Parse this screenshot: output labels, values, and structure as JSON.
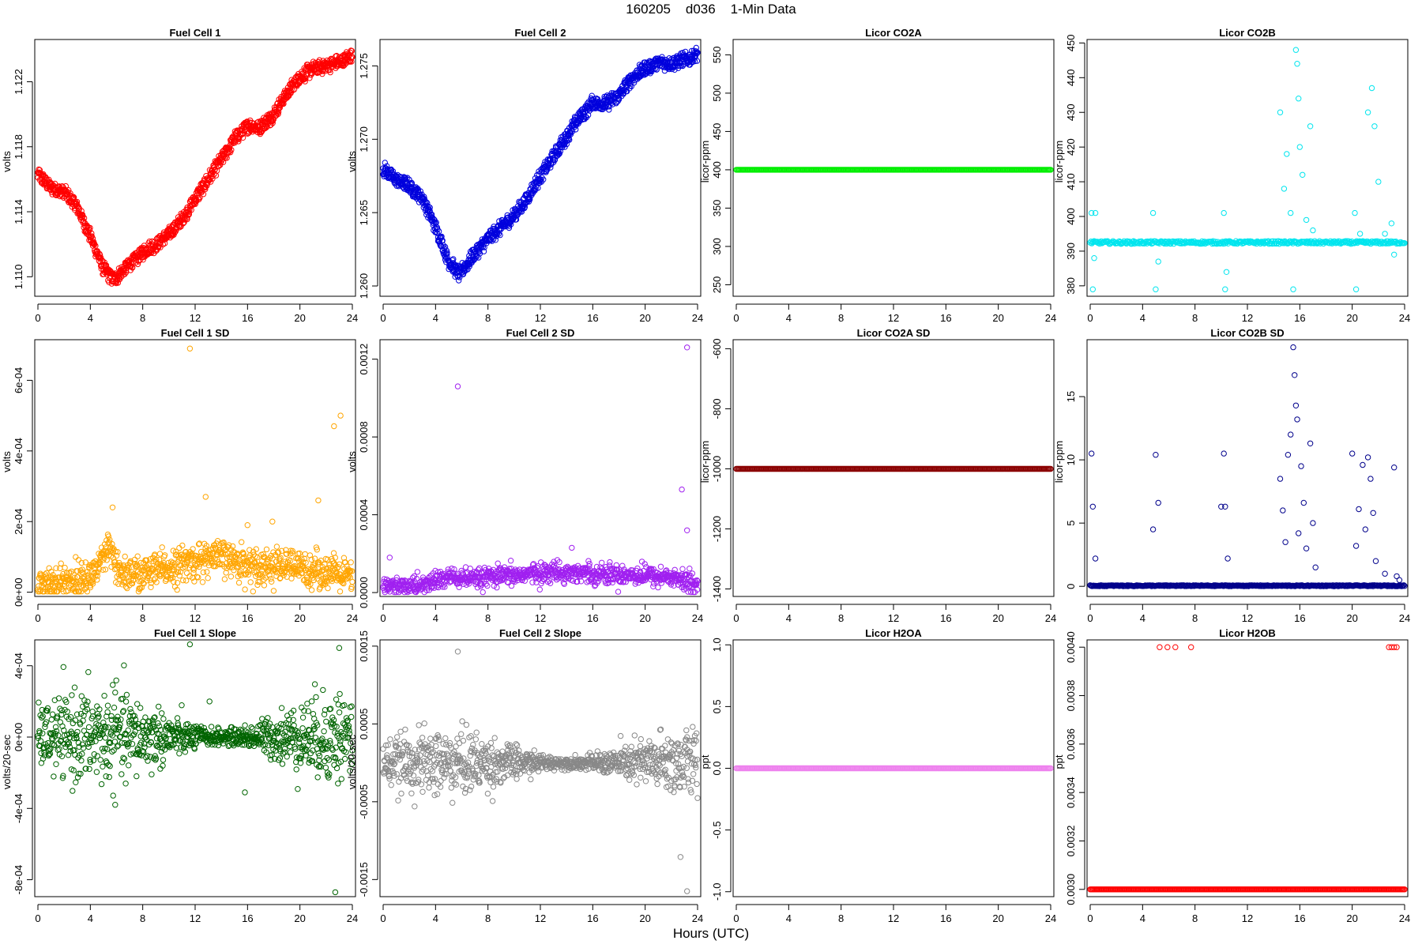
{
  "title": "160205    d036    1-Min Data",
  "xlabel": "Hours (UTC)",
  "chart_data": [
    {
      "type": "scatter",
      "title": "Fuel Cell 1",
      "ylabel": "volts",
      "color": "#ff0000",
      "xlim": [
        0,
        24
      ],
      "xticks": [
        0,
        4,
        8,
        12,
        16,
        20,
        24
      ],
      "ylim": [
        1.1088,
        1.1246
      ],
      "yticks": [
        1.11,
        1.114,
        1.118,
        1.122
      ],
      "ytick_labels": [
        "1.110",
        "1.114",
        "1.118",
        "1.122"
      ],
      "mode": "trend",
      "knots": [
        [
          0,
          1.1163
        ],
        [
          1,
          1.1155
        ],
        [
          2,
          1.1152
        ],
        [
          3,
          1.1143
        ],
        [
          4,
          1.1125
        ],
        [
          5,
          1.1105
        ],
        [
          5.8,
          1.1098
        ],
        [
          7,
          1.1108
        ],
        [
          8,
          1.1115
        ],
        [
          9,
          1.112
        ],
        [
          10,
          1.1126
        ],
        [
          11,
          1.1135
        ],
        [
          12,
          1.1148
        ],
        [
          13,
          1.116
        ],
        [
          14,
          1.1172
        ],
        [
          15,
          1.1185
        ],
        [
          16,
          1.1193
        ],
        [
          17,
          1.1192
        ],
        [
          18,
          1.12
        ],
        [
          19,
          1.1213
        ],
        [
          20,
          1.1223
        ],
        [
          21,
          1.1228
        ],
        [
          22,
          1.123
        ],
        [
          23,
          1.1232
        ],
        [
          24,
          1.1236
        ]
      ],
      "band": 0.00045
    },
    {
      "type": "scatter",
      "title": "Fuel Cell 2",
      "ylabel": "volts",
      "color": "#0000dd",
      "xlim": [
        0,
        24
      ],
      "xticks": [
        0,
        4,
        8,
        12,
        16,
        20,
        24
      ],
      "ylim": [
        1.2593,
        1.2768
      ],
      "yticks": [
        1.26,
        1.265,
        1.27,
        1.275
      ],
      "ytick_labels": [
        "1.260",
        "1.265",
        "1.270",
        "1.275"
      ],
      "mode": "trend",
      "knots": [
        [
          0,
          1.268
        ],
        [
          1,
          1.2672
        ],
        [
          2,
          1.2668
        ],
        [
          3,
          1.266
        ],
        [
          4,
          1.264
        ],
        [
          5,
          1.2617
        ],
        [
          5.8,
          1.2608
        ],
        [
          7,
          1.2622
        ],
        [
          8,
          1.2632
        ],
        [
          9,
          1.264
        ],
        [
          10,
          1.2648
        ],
        [
          11,
          1.266
        ],
        [
          12,
          1.2675
        ],
        [
          13,
          1.2688
        ],
        [
          14,
          1.2702
        ],
        [
          15,
          1.2715
        ],
        [
          16,
          1.2725
        ],
        [
          17,
          1.2724
        ],
        [
          18,
          1.273
        ],
        [
          19,
          1.2742
        ],
        [
          20,
          1.2748
        ],
        [
          21,
          1.2752
        ],
        [
          22,
          1.2752
        ],
        [
          23,
          1.2754
        ],
        [
          24,
          1.2758
        ]
      ],
      "band": 0.0005
    },
    {
      "type": "scatter",
      "title": "Licor CO2A",
      "ylabel": "licor-ppm",
      "color": "#00ee00",
      "xlim": [
        0,
        24
      ],
      "xticks": [
        0,
        4,
        8,
        12,
        16,
        20,
        24
      ],
      "ylim": [
        235,
        570
      ],
      "yticks": [
        250,
        300,
        350,
        400,
        450,
        500,
        550
      ],
      "ytick_labels": [
        "250",
        "300",
        "350",
        "400",
        "450",
        "500",
        "550"
      ],
      "mode": "flat",
      "value": 400
    },
    {
      "type": "scatter",
      "title": "Licor CO2B",
      "ylabel": "licor-ppm",
      "color": "#00e5ee",
      "xlim": [
        0,
        24
      ],
      "xticks": [
        0,
        4,
        8,
        12,
        16,
        20,
        24
      ],
      "ylim": [
        377,
        451
      ],
      "yticks": [
        380,
        390,
        400,
        410,
        420,
        430,
        440,
        450
      ],
      "ytick_labels": [
        "380",
        "390",
        "400",
        "410",
        "420",
        "430",
        "440",
        "450"
      ],
      "mode": "baseline",
      "base": 392.5,
      "noise": 0.4,
      "spikes": [
        [
          0.1,
          401
        ],
        [
          0.2,
          379
        ],
        [
          0.3,
          388
        ],
        [
          0.4,
          401
        ],
        [
          4.8,
          401
        ],
        [
          5.0,
          379
        ],
        [
          5.2,
          387
        ],
        [
          10.2,
          401
        ],
        [
          10.3,
          379
        ],
        [
          10.4,
          384
        ],
        [
          14.5,
          430
        ],
        [
          14.8,
          408
        ],
        [
          15.0,
          418
        ],
        [
          15.3,
          401
        ],
        [
          15.5,
          379
        ],
        [
          15.7,
          448
        ],
        [
          15.8,
          444
        ],
        [
          15.9,
          434
        ],
        [
          16.0,
          420
        ],
        [
          16.2,
          412
        ],
        [
          16.5,
          399
        ],
        [
          16.8,
          426
        ],
        [
          17.0,
          396
        ],
        [
          20.2,
          401
        ],
        [
          20.3,
          379
        ],
        [
          20.6,
          395
        ],
        [
          21.2,
          430
        ],
        [
          21.5,
          437
        ],
        [
          21.7,
          426
        ],
        [
          22.0,
          410
        ],
        [
          22.5,
          395
        ],
        [
          23.0,
          398
        ],
        [
          23.2,
          389
        ]
      ]
    },
    {
      "type": "scatter",
      "title": "Fuel Cell 1 SD",
      "ylabel": "volts",
      "color": "#ffa500",
      "xlim": [
        0,
        24
      ],
      "xticks": [
        0,
        4,
        8,
        12,
        16,
        20,
        24
      ],
      "ylim": [
        -1.2e-05,
        0.000715
      ],
      "yticks": [
        0,
        0.0002,
        0.0004,
        0.0006
      ],
      "ytick_labels": [
        "0e+00",
        "2e-04",
        "4e-04",
        "6e-04"
      ],
      "mode": "noise",
      "knots": [
        [
          0,
          1.5e-05
        ],
        [
          3,
          2.5e-05
        ],
        [
          4,
          3.5e-05
        ],
        [
          5,
          8e-05
        ],
        [
          5.5,
          0.00012
        ],
        [
          6,
          5e-05
        ],
        [
          8,
          4e-05
        ],
        [
          10,
          6e-05
        ],
        [
          12,
          8e-05
        ],
        [
          14,
          9e-05
        ],
        [
          16,
          7e-05
        ],
        [
          20,
          6e-05
        ],
        [
          22,
          5e-05
        ],
        [
          24,
          3e-05
        ]
      ],
      "spread": 3e-05,
      "spikes": [
        [
          11.6,
          0.00069
        ],
        [
          12.8,
          0.00027
        ],
        [
          5.7,
          0.00024
        ],
        [
          21.4,
          0.00026
        ],
        [
          22.6,
          0.00047
        ],
        [
          23.1,
          0.0005
        ],
        [
          17.9,
          0.0002
        ],
        [
          16.0,
          0.00019
        ]
      ]
    },
    {
      "type": "scatter",
      "title": "Fuel Cell 2 SD",
      "ylabel": "volts",
      "color": "#a020f0",
      "xlim": [
        0,
        24
      ],
      "xticks": [
        0,
        4,
        8,
        12,
        16,
        20,
        24
      ],
      "ylim": [
        -2e-05,
        0.0013
      ],
      "yticks": [
        0,
        0.0004,
        0.0008,
        0.0012
      ],
      "ytick_labels": [
        "0.0000",
        "0.0004",
        "0.0008",
        "0.0012"
      ],
      "mode": "noise",
      "knots": [
        [
          0,
          2e-05
        ],
        [
          3,
          3e-05
        ],
        [
          5,
          7e-05
        ],
        [
          7,
          6e-05
        ],
        [
          10,
          8e-05
        ],
        [
          13,
          0.0001
        ],
        [
          16,
          9e-05
        ],
        [
          20,
          8e-05
        ],
        [
          22,
          7e-05
        ],
        [
          24,
          3e-05
        ]
      ],
      "spread": 3e-05,
      "spikes": [
        [
          0.5,
          0.00018
        ],
        [
          5.7,
          0.00106
        ],
        [
          22.8,
          0.00053
        ],
        [
          23.2,
          0.00032
        ],
        [
          23.2,
          0.00126
        ],
        [
          14.4,
          0.00023
        ]
      ]
    },
    {
      "type": "scatter",
      "title": "Licor CO2A SD",
      "ylabel": "licor-ppm",
      "color": "#8b0000",
      "xlim": [
        0,
        24
      ],
      "xticks": [
        0,
        4,
        8,
        12,
        16,
        20,
        24
      ],
      "ylim": [
        -1425,
        -570
      ],
      "yticks": [
        -1400,
        -1200,
        -1000,
        -800,
        -600
      ],
      "ytick_labels": [
        "-1400",
        "-1200",
        "-1000",
        "-800",
        "-600"
      ],
      "mode": "flat",
      "value": -1000
    },
    {
      "type": "scatter",
      "title": "Licor CO2B SD",
      "ylabel": "licor-ppm",
      "color": "#00008b",
      "xlim": [
        0,
        24
      ],
      "xticks": [
        0,
        4,
        8,
        12,
        16,
        20,
        24
      ],
      "ylim": [
        -0.8,
        19.5
      ],
      "yticks": [
        0,
        5,
        10,
        15
      ],
      "ytick_labels": [
        "0",
        "5",
        "10",
        "15"
      ],
      "mode": "baseline",
      "base": 0.05,
      "noise": 0.04,
      "spikes": [
        [
          0.1,
          10.5
        ],
        [
          0.2,
          6.3
        ],
        [
          0.4,
          2.2
        ],
        [
          4.8,
          4.5
        ],
        [
          5.0,
          10.4
        ],
        [
          5.2,
          6.6
        ],
        [
          10.0,
          6.3
        ],
        [
          10.2,
          10.5
        ],
        [
          10.3,
          6.3
        ],
        [
          10.5,
          2.2
        ],
        [
          14.5,
          8.5
        ],
        [
          14.7,
          6.0
        ],
        [
          14.9,
          3.5
        ],
        [
          15.1,
          10.4
        ],
        [
          15.3,
          12.0
        ],
        [
          15.5,
          18.9
        ],
        [
          15.6,
          16.7
        ],
        [
          15.7,
          14.3
        ],
        [
          15.8,
          13.2
        ],
        [
          15.9,
          4.2
        ],
        [
          16.1,
          9.5
        ],
        [
          16.3,
          6.6
        ],
        [
          16.5,
          3.0
        ],
        [
          16.8,
          11.3
        ],
        [
          17.0,
          5.0
        ],
        [
          17.2,
          1.5
        ],
        [
          20.0,
          10.5
        ],
        [
          20.3,
          3.2
        ],
        [
          20.5,
          6.1
        ],
        [
          20.8,
          9.6
        ],
        [
          21.0,
          4.5
        ],
        [
          21.2,
          10.2
        ],
        [
          21.4,
          8.5
        ],
        [
          21.6,
          5.8
        ],
        [
          21.8,
          2.0
        ],
        [
          22.5,
          1.0
        ],
        [
          23.2,
          9.4
        ],
        [
          23.4,
          0.8
        ],
        [
          23.6,
          0.5
        ]
      ]
    },
    {
      "type": "scatter",
      "title": "Fuel Cell 1 Slope",
      "ylabel": "volts/20-sec",
      "color": "#006400",
      "xlim": [
        0,
        24
      ],
      "xticks": [
        0,
        4,
        8,
        12,
        16,
        20,
        24
      ],
      "ylim": [
        -0.000895,
        0.000545
      ],
      "yticks": [
        -0.0008,
        -0.0004,
        0,
        0.0004
      ],
      "ytick_labels": [
        "-8e-04",
        "-4e-04",
        "0e+00",
        "4e-04"
      ],
      "mode": "noise",
      "knots": [
        [
          0,
          0
        ],
        [
          24,
          0
        ]
      ],
      "spread": 0.00011,
      "symmetric": true,
      "spikes": [
        [
          11.6,
          0.00052
        ],
        [
          23.0,
          0.0005
        ],
        [
          5.9,
          0.00025
        ],
        [
          13.1,
          0.0002
        ],
        [
          15.8,
          -0.00031
        ],
        [
          22.7,
          -0.00087
        ],
        [
          5.2,
          -0.00022
        ]
      ]
    },
    {
      "type": "scatter",
      "title": "Fuel Cell 2 Slope",
      "ylabel": "volts/20-sec",
      "color": "#888888",
      "xlim": [
        0,
        24
      ],
      "xticks": [
        0,
        4,
        8,
        12,
        16,
        20,
        24
      ],
      "ylim": [
        -0.00172,
        0.00158
      ],
      "yticks": [
        -0.0015,
        -0.0005,
        0.0005,
        0.0015
      ],
      "ytick_labels": [
        "-0.0015",
        "-0.0005",
        "0.0005",
        "0.0015"
      ],
      "mode": "noise",
      "knots": [
        [
          0,
          0
        ],
        [
          24,
          0
        ]
      ],
      "spread": 0.00018,
      "symmetric": true,
      "spikes": [
        [
          5.7,
          0.00143
        ],
        [
          23.2,
          0.00033
        ],
        [
          22.7,
          -0.00121
        ],
        [
          23.2,
          -0.00165
        ],
        [
          8.2,
          -0.00025
        ]
      ]
    },
    {
      "type": "scatter",
      "title": "Licor H2OA",
      "ylabel": "ppt",
      "color": "#ee82ee",
      "xlim": [
        0,
        24
      ],
      "xticks": [
        0,
        4,
        8,
        12,
        16,
        20,
        24
      ],
      "ylim": [
        -1.04,
        1.04
      ],
      "yticks": [
        -1.0,
        -0.5,
        0,
        0.5,
        1.0
      ],
      "ytick_labels": [
        "-1.0",
        "-0.5",
        "0.0",
        "0.5",
        "1.0"
      ],
      "mode": "flat",
      "value": 0
    },
    {
      "type": "scatter",
      "title": "Licor H2OB",
      "ylabel": "ppt",
      "color": "#ff0000",
      "xlim": [
        0,
        24
      ],
      "xticks": [
        0,
        4,
        8,
        12,
        16,
        20,
        24
      ],
      "ylim": [
        0.00297,
        0.00403
      ],
      "yticks": [
        0.003,
        0.0032,
        0.0034,
        0.0036,
        0.0038,
        0.004
      ],
      "ytick_labels": [
        "0.0030",
        "0.0032",
        "0.0034",
        "0.0036",
        "0.0038",
        "0.0040"
      ],
      "mode": "flat",
      "value": 0.003,
      "spikes": [
        [
          5.3,
          0.004
        ],
        [
          5.9,
          0.004
        ],
        [
          6.5,
          0.004
        ],
        [
          7.7,
          0.004
        ],
        [
          22.8,
          0.004
        ],
        [
          23.0,
          0.004
        ],
        [
          23.2,
          0.004
        ],
        [
          23.4,
          0.004
        ]
      ]
    }
  ]
}
